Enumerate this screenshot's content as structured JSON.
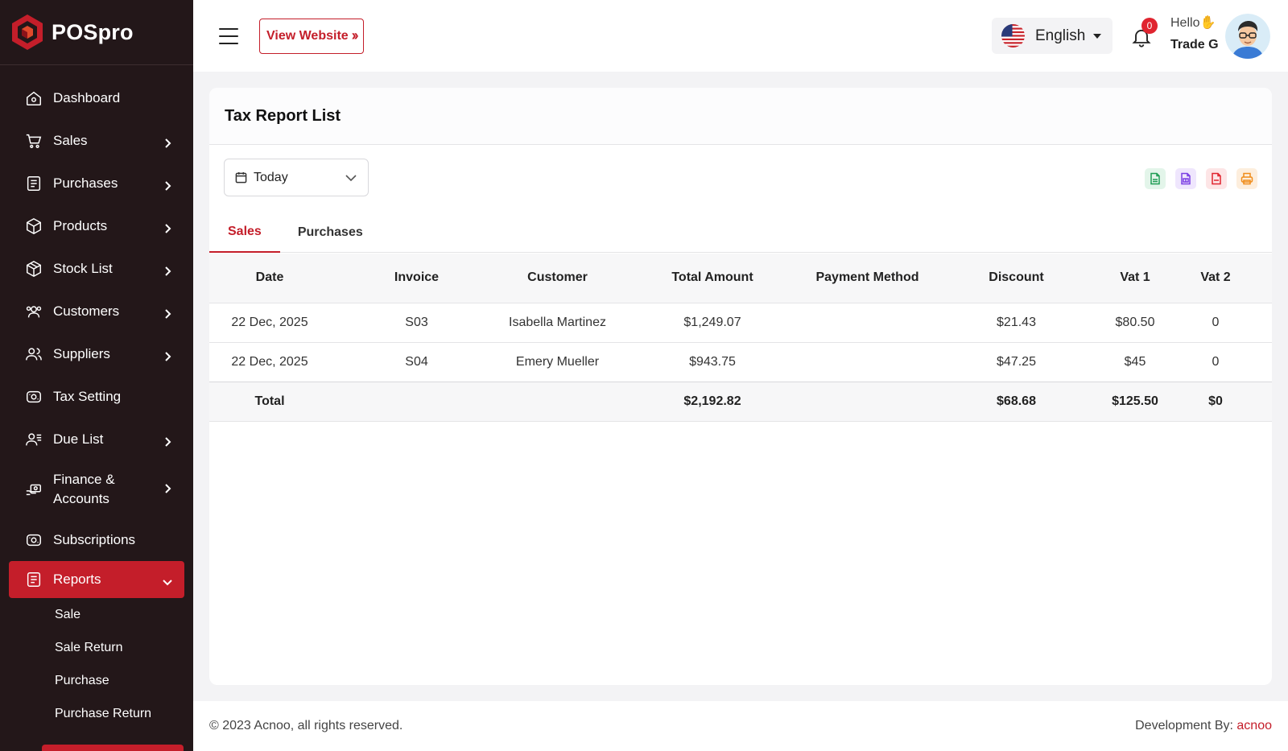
{
  "brand": {
    "name": "POSpro"
  },
  "sidebar": {
    "items": [
      {
        "label": "Dashboard"
      },
      {
        "label": "Sales"
      },
      {
        "label": "Purchases"
      },
      {
        "label": "Products"
      },
      {
        "label": "Stock List"
      },
      {
        "label": "Customers"
      },
      {
        "label": "Suppliers"
      },
      {
        "label": "Tax Setting"
      },
      {
        "label": "Due List"
      },
      {
        "label": "Finance & Accounts"
      },
      {
        "label": "Subscriptions"
      },
      {
        "label": "Reports"
      }
    ],
    "report_subitems": [
      "Sale",
      "Sale Return",
      "Purchase",
      "Purchase Return"
    ]
  },
  "header": {
    "view_website": "View Website",
    "language": "English",
    "notification_count": "0",
    "greeting": "Hello",
    "greeting_emoji": "✋",
    "user_name": "Trade G"
  },
  "page": {
    "title": "Tax Report List",
    "filter_value": "Today",
    "tabs": [
      "Sales",
      "Purchases"
    ],
    "export_colors": {
      "csv": "#1f9d55",
      "excel": "#7b3fe4",
      "pdf": "#e0242f",
      "print": "#f08c1a"
    }
  },
  "table": {
    "headers": [
      "Date",
      "Invoice",
      "Customer",
      "Total Amount",
      "Payment Method",
      "Discount",
      "Vat 1",
      "Vat 2"
    ],
    "rows": [
      [
        "22 Dec, 2025",
        "S03",
        "Isabella Martinez",
        "$1,249.07",
        "",
        "$21.43",
        "$80.50",
        "0"
      ],
      [
        "22 Dec, 2025",
        "S04",
        "Emery Mueller",
        "$943.75",
        "",
        "$47.25",
        "$45",
        "0"
      ]
    ],
    "total": {
      "label": "Total",
      "amount": "$2,192.82",
      "discount": "$68.68",
      "vat1": "$125.50",
      "vat2": "$0"
    }
  },
  "footer": {
    "copyright": "© 2023 Acnoo, all rights reserved.",
    "dev_label": "Development By:",
    "dev_name": "acnoo"
  },
  "colors": {
    "accent": "#c41e2a",
    "sidebar_bg": "#231719"
  }
}
